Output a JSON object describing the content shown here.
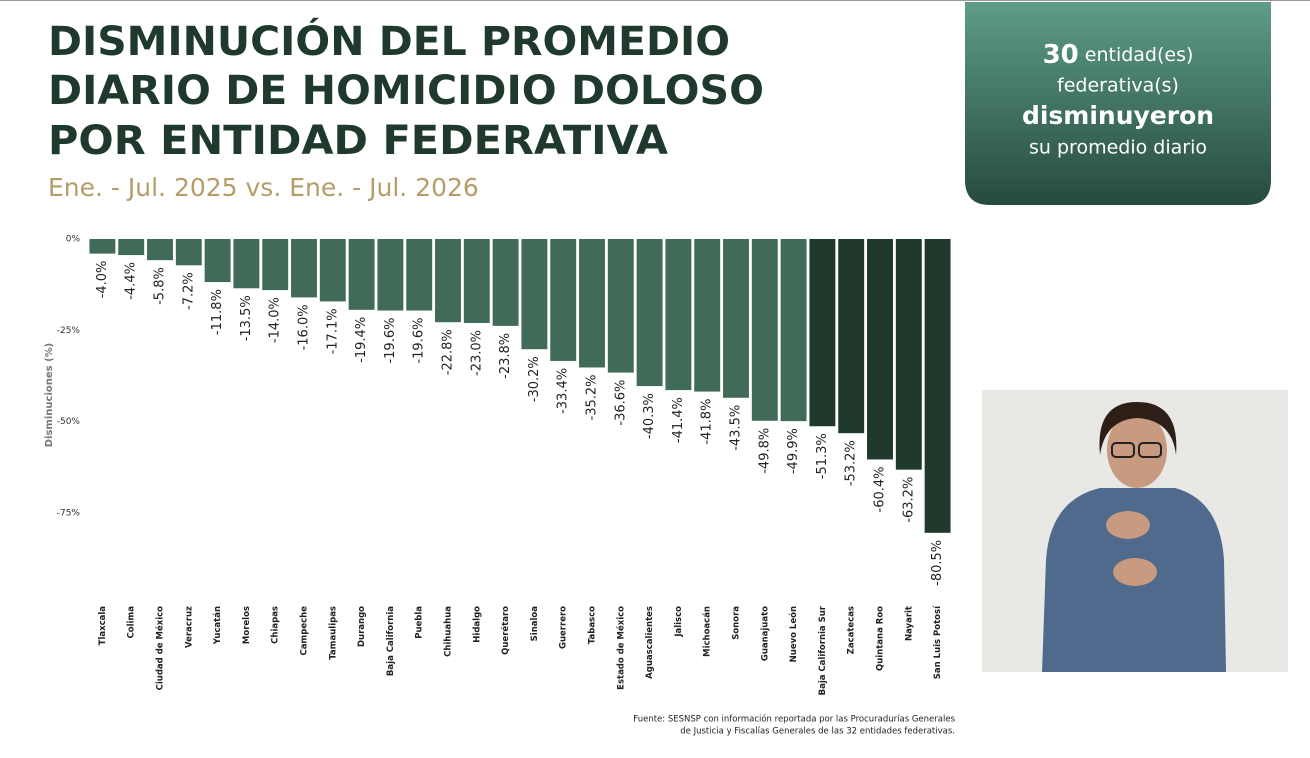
{
  "chart_data": {
    "type": "bar",
    "title": [
      "DISMINUCIÓN DEL PROMEDIO",
      "DIARIO DE HOMICIDIO DOLOSO",
      "POR ENTIDAD FEDERATIVA"
    ],
    "subtitle": "Ene. - Jul. 2025 vs. Ene. - Jul. 2026",
    "y_label": "Disminuciones (%)",
    "categories": [
      "Tlaxcala",
      "Colima",
      "Ciudad de México",
      "Veracruz",
      "Yucatán",
      "Morelos",
      "Chiapas",
      "Campeche",
      "Tamaulipas",
      "Durango",
      "Baja California",
      "Puebla",
      "Chihuahua",
      "Hidalgo",
      "Querétaro",
      "Sinaloa",
      "Guerrero",
      "Tabasco",
      "Estado de México",
      "Aguascalientes",
      "Jalisco",
      "Michoacán",
      "Sonora",
      "Guanajuato",
      "Nuevo León",
      "Baja California Sur",
      "Zacatecas",
      "Quintana Roo",
      "Nayarit",
      "San Luis Potosí"
    ],
    "values": [
      -4.0,
      -4.4,
      -5.8,
      -7.2,
      -11.8,
      -13.5,
      -14.0,
      -16.0,
      -17.1,
      -19.4,
      -19.6,
      -19.6,
      -22.8,
      -23.0,
      -23.8,
      -30.2,
      -33.4,
      -35.2,
      -36.6,
      -40.3,
      -41.4,
      -41.8,
      -43.5,
      -49.8,
      -49.9,
      -51.3,
      -53.2,
      -60.4,
      -63.2,
      -80.5
    ],
    "value_labels": [
      "-4.0%",
      "-4.4%",
      "-5.8%",
      "-7.2%",
      "-11.8%",
      "-13.5%",
      "-14.0%",
      "-16.0%",
      "-17.1%",
      "-19.4%",
      "-19.6%",
      "-19.6%",
      "-22.8%",
      "-23.0%",
      "-23.8%",
      "-30.2%",
      "-33.4%",
      "-35.2%",
      "-36.6%",
      "-40.3%",
      "-41.4%",
      "-41.8%",
      "-43.5%",
      "-49.8%",
      "-49.9%",
      "-51.3%",
      "-53.2%",
      "-60.4%",
      "-63.2%",
      "-80.5%"
    ],
    "colors": [
      "#3f6b58",
      "#3f6b58",
      "#3f6b58",
      "#3f6b58",
      "#3f6b58",
      "#3f6b58",
      "#3f6b58",
      "#3f6b58",
      "#3f6b58",
      "#3f6b58",
      "#3f6b58",
      "#3f6b58",
      "#3f6b58",
      "#3f6b58",
      "#3f6b58",
      "#3f6b58",
      "#3f6b58",
      "#3f6b58",
      "#3f6b58",
      "#3f6b58",
      "#3f6b58",
      "#3f6b58",
      "#3f6b58",
      "#3f6b58",
      "#3f6b58",
      "#1f3a2d",
      "#1f3a2d",
      "#1f3a2d",
      "#1f3a2d",
      "#1f3a2d"
    ],
    "ylim": [
      -100,
      0
    ],
    "yticks": [
      {
        "value": 0,
        "label": "0%"
      },
      {
        "value": -25,
        "label": "-25%"
      },
      {
        "value": -50,
        "label": "-50%"
      },
      {
        "value": -75,
        "label": "-75%"
      }
    ],
    "source": [
      "Fuente: SESNSP con información reportada por las Procuradurías Generales",
      "de Justicia y Fiscalías Generales de las 32 entidades federativas."
    ]
  },
  "callout": {
    "count": 30,
    "lines": [
      "entidad(es)",
      "federativa(s)",
      "disminuyeron",
      "su promedio diario"
    ]
  }
}
